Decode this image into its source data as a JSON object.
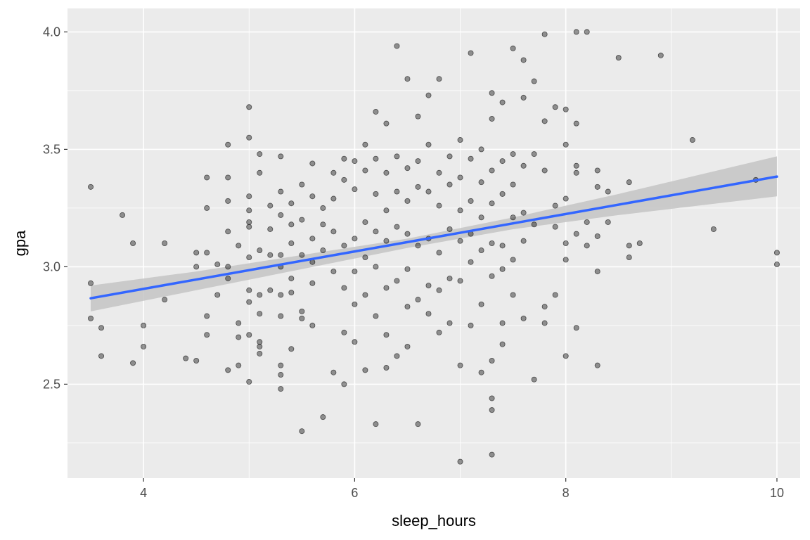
{
  "chart_data": {
    "type": "scatter",
    "title": "",
    "xlabel": "sleep_hours",
    "ylabel": "gpa",
    "xlim": [
      3.28,
      10.22
    ],
    "ylim": [
      2.1,
      4.1
    ],
    "x_ticks": [
      4,
      6,
      8,
      10
    ],
    "y_ticks": [
      2.5,
      3.0,
      3.5,
      4.0
    ],
    "x_tick_labels": [
      "4",
      "6",
      "8",
      "10"
    ],
    "y_tick_labels": [
      "2.5",
      "3.0",
      "3.5",
      "4.0"
    ],
    "grid": true,
    "legend": "none",
    "colors": {
      "panel": "#ebebeb",
      "grid": "#ffffff",
      "points": "#000000",
      "line": "#3366ff",
      "ribbon": "#c4c4c4"
    },
    "trend_line": {
      "method": "linear",
      "intercept": 2.587,
      "slope": 0.0797,
      "x_range": [
        3.5,
        10.0
      ]
    },
    "confidence_band": [
      {
        "x": 3.5,
        "lower": 2.81,
        "upper": 2.92
      },
      {
        "x": 4.5,
        "lower": 2.9,
        "upper": 2.98
      },
      {
        "x": 5.5,
        "lower": 2.99,
        "upper": 3.05
      },
      {
        "x": 6.5,
        "lower": 3.08,
        "upper": 3.12
      },
      {
        "x": 7.5,
        "lower": 3.16,
        "upper": 3.21
      },
      {
        "x": 8.5,
        "lower": 3.22,
        "upper": 3.31
      },
      {
        "x": 10.0,
        "lower": 3.3,
        "upper": 3.47
      }
    ],
    "points": [
      [
        3.5,
        3.34
      ],
      [
        3.5,
        2.93
      ],
      [
        3.5,
        2.78
      ],
      [
        3.6,
        2.74
      ],
      [
        3.6,
        2.62
      ],
      [
        3.8,
        3.22
      ],
      [
        3.9,
        3.1
      ],
      [
        3.9,
        2.59
      ],
      [
        4.0,
        2.75
      ],
      [
        4.0,
        2.66
      ],
      [
        4.2,
        3.1
      ],
      [
        4.2,
        2.86
      ],
      [
        4.4,
        2.61
      ],
      [
        4.5,
        2.6
      ],
      [
        4.5,
        3.06
      ],
      [
        4.5,
        3.0
      ],
      [
        4.6,
        3.38
      ],
      [
        4.6,
        3.25
      ],
      [
        4.6,
        3.06
      ],
      [
        4.6,
        2.79
      ],
      [
        4.6,
        2.71
      ],
      [
        4.7,
        3.01
      ],
      [
        4.7,
        2.88
      ],
      [
        4.8,
        3.52
      ],
      [
        4.8,
        3.38
      ],
      [
        4.8,
        3.28
      ],
      [
        4.8,
        3.15
      ],
      [
        4.8,
        3.0
      ],
      [
        4.8,
        2.95
      ],
      [
        4.8,
        2.56
      ],
      [
        4.9,
        3.09
      ],
      [
        4.9,
        2.76
      ],
      [
        4.9,
        2.7
      ],
      [
        4.9,
        2.58
      ],
      [
        5.0,
        3.68
      ],
      [
        5.0,
        3.55
      ],
      [
        5.0,
        3.3
      ],
      [
        5.0,
        3.24
      ],
      [
        5.0,
        3.19
      ],
      [
        5.0,
        3.17
      ],
      [
        5.0,
        3.04
      ],
      [
        5.0,
        2.9
      ],
      [
        5.0,
        2.85
      ],
      [
        5.0,
        2.71
      ],
      [
        5.0,
        2.51
      ],
      [
        5.1,
        3.48
      ],
      [
        5.1,
        3.4
      ],
      [
        5.1,
        3.07
      ],
      [
        5.1,
        2.88
      ],
      [
        5.1,
        2.8
      ],
      [
        5.1,
        2.68
      ],
      [
        5.1,
        2.66
      ],
      [
        5.1,
        2.63
      ],
      [
        5.2,
        3.26
      ],
      [
        5.2,
        3.16
      ],
      [
        5.2,
        3.05
      ],
      [
        5.2,
        2.9
      ],
      [
        5.3,
        3.47
      ],
      [
        5.3,
        3.32
      ],
      [
        5.3,
        3.22
      ],
      [
        5.3,
        3.05
      ],
      [
        5.3,
        3.0
      ],
      [
        5.3,
        2.88
      ],
      [
        5.3,
        2.79
      ],
      [
        5.3,
        2.58
      ],
      [
        5.3,
        2.54
      ],
      [
        5.3,
        2.48
      ],
      [
        5.4,
        3.27
      ],
      [
        5.4,
        3.18
      ],
      [
        5.4,
        3.1
      ],
      [
        5.4,
        2.95
      ],
      [
        5.4,
        2.89
      ],
      [
        5.4,
        2.65
      ],
      [
        5.5,
        3.35
      ],
      [
        5.5,
        3.2
      ],
      [
        5.5,
        3.05
      ],
      [
        5.5,
        2.81
      ],
      [
        5.5,
        2.78
      ],
      [
        5.5,
        2.3
      ],
      [
        5.6,
        3.44
      ],
      [
        5.6,
        3.3
      ],
      [
        5.6,
        3.12
      ],
      [
        5.6,
        3.02
      ],
      [
        5.6,
        2.93
      ],
      [
        5.6,
        2.75
      ],
      [
        5.7,
        3.25
      ],
      [
        5.7,
        3.18
      ],
      [
        5.7,
        3.07
      ],
      [
        5.7,
        2.36
      ],
      [
        5.8,
        3.4
      ],
      [
        5.8,
        3.29
      ],
      [
        5.8,
        3.15
      ],
      [
        5.8,
        2.98
      ],
      [
        5.8,
        2.55
      ],
      [
        5.9,
        3.46
      ],
      [
        5.9,
        3.37
      ],
      [
        5.9,
        3.09
      ],
      [
        5.9,
        2.91
      ],
      [
        5.9,
        2.72
      ],
      [
        5.9,
        2.5
      ],
      [
        6.0,
        3.45
      ],
      [
        6.0,
        3.33
      ],
      [
        6.0,
        3.12
      ],
      [
        6.0,
        2.98
      ],
      [
        6.0,
        2.84
      ],
      [
        6.0,
        2.68
      ],
      [
        6.1,
        3.52
      ],
      [
        6.1,
        3.41
      ],
      [
        6.1,
        3.19
      ],
      [
        6.1,
        3.04
      ],
      [
        6.1,
        2.88
      ],
      [
        6.1,
        2.56
      ],
      [
        6.2,
        3.66
      ],
      [
        6.2,
        3.46
      ],
      [
        6.2,
        3.31
      ],
      [
        6.2,
        3.15
      ],
      [
        6.2,
        3.0
      ],
      [
        6.2,
        2.79
      ],
      [
        6.2,
        2.33
      ],
      [
        6.3,
        3.61
      ],
      [
        6.3,
        3.4
      ],
      [
        6.3,
        3.24
      ],
      [
        6.3,
        3.11
      ],
      [
        6.3,
        2.91
      ],
      [
        6.3,
        2.71
      ],
      [
        6.3,
        2.57
      ],
      [
        6.4,
        3.94
      ],
      [
        6.4,
        3.47
      ],
      [
        6.4,
        3.32
      ],
      [
        6.4,
        3.17
      ],
      [
        6.4,
        2.94
      ],
      [
        6.4,
        2.62
      ],
      [
        6.5,
        3.8
      ],
      [
        6.5,
        3.42
      ],
      [
        6.5,
        3.28
      ],
      [
        6.5,
        3.14
      ],
      [
        6.5,
        2.99
      ],
      [
        6.5,
        2.83
      ],
      [
        6.5,
        2.66
      ],
      [
        6.6,
        3.64
      ],
      [
        6.6,
        3.45
      ],
      [
        6.6,
        3.34
      ],
      [
        6.6,
        3.09
      ],
      [
        6.6,
        2.86
      ],
      [
        6.6,
        2.33
      ],
      [
        6.7,
        3.73
      ],
      [
        6.7,
        3.52
      ],
      [
        6.7,
        3.32
      ],
      [
        6.7,
        3.12
      ],
      [
        6.7,
        2.92
      ],
      [
        6.7,
        2.8
      ],
      [
        6.8,
        3.8
      ],
      [
        6.8,
        3.4
      ],
      [
        6.8,
        3.26
      ],
      [
        6.8,
        3.06
      ],
      [
        6.8,
        2.9
      ],
      [
        6.8,
        2.72
      ],
      [
        6.9,
        3.47
      ],
      [
        6.9,
        3.35
      ],
      [
        6.9,
        3.16
      ],
      [
        6.9,
        2.95
      ],
      [
        6.9,
        2.76
      ],
      [
        7.0,
        3.54
      ],
      [
        7.0,
        3.38
      ],
      [
        7.0,
        3.24
      ],
      [
        7.0,
        3.11
      ],
      [
        7.0,
        2.94
      ],
      [
        7.0,
        2.58
      ],
      [
        7.0,
        2.17
      ],
      [
        7.1,
        3.91
      ],
      [
        7.1,
        3.46
      ],
      [
        7.1,
        3.28
      ],
      [
        7.1,
        3.14
      ],
      [
        7.1,
        3.02
      ],
      [
        7.1,
        2.75
      ],
      [
        7.2,
        3.5
      ],
      [
        7.2,
        3.36
      ],
      [
        7.2,
        3.21
      ],
      [
        7.2,
        3.07
      ],
      [
        7.2,
        2.84
      ],
      [
        7.2,
        2.55
      ],
      [
        7.3,
        3.74
      ],
      [
        7.3,
        3.63
      ],
      [
        7.3,
        3.41
      ],
      [
        7.3,
        3.27
      ],
      [
        7.3,
        3.1
      ],
      [
        7.3,
        2.96
      ],
      [
        7.3,
        2.6
      ],
      [
        7.3,
        2.44
      ],
      [
        7.3,
        2.39
      ],
      [
        7.3,
        2.2
      ],
      [
        7.4,
        3.7
      ],
      [
        7.4,
        3.45
      ],
      [
        7.4,
        3.31
      ],
      [
        7.4,
        3.09
      ],
      [
        7.4,
        2.99
      ],
      [
        7.4,
        2.76
      ],
      [
        7.4,
        2.67
      ],
      [
        7.5,
        3.93
      ],
      [
        7.5,
        3.48
      ],
      [
        7.5,
        3.35
      ],
      [
        7.5,
        3.21
      ],
      [
        7.5,
        3.03
      ],
      [
        7.5,
        2.88
      ],
      [
        7.6,
        3.88
      ],
      [
        7.6,
        3.72
      ],
      [
        7.6,
        3.43
      ],
      [
        7.6,
        3.23
      ],
      [
        7.6,
        3.11
      ],
      [
        7.6,
        2.78
      ],
      [
        7.7,
        3.79
      ],
      [
        7.7,
        3.48
      ],
      [
        7.7,
        3.18
      ],
      [
        7.7,
        2.52
      ],
      [
        7.8,
        3.99
      ],
      [
        7.8,
        3.62
      ],
      [
        7.8,
        3.41
      ],
      [
        7.8,
        2.83
      ],
      [
        7.8,
        2.76
      ],
      [
        7.9,
        3.68
      ],
      [
        7.9,
        3.26
      ],
      [
        7.9,
        3.17
      ],
      [
        7.9,
        2.88
      ],
      [
        8.0,
        3.67
      ],
      [
        8.0,
        3.52
      ],
      [
        8.0,
        3.29
      ],
      [
        8.0,
        3.1
      ],
      [
        8.0,
        3.03
      ],
      [
        8.0,
        2.62
      ],
      [
        8.1,
        4.0
      ],
      [
        8.1,
        3.61
      ],
      [
        8.1,
        3.43
      ],
      [
        8.1,
        3.4
      ],
      [
        8.1,
        3.14
      ],
      [
        8.1,
        2.74
      ],
      [
        8.2,
        4.0
      ],
      [
        8.2,
        3.19
      ],
      [
        8.2,
        3.09
      ],
      [
        8.3,
        3.41
      ],
      [
        8.3,
        3.34
      ],
      [
        8.3,
        3.13
      ],
      [
        8.3,
        2.98
      ],
      [
        8.3,
        2.58
      ],
      [
        8.4,
        3.32
      ],
      [
        8.4,
        3.19
      ],
      [
        8.5,
        3.89
      ],
      [
        8.6,
        3.36
      ],
      [
        8.6,
        3.09
      ],
      [
        8.6,
        3.04
      ],
      [
        8.7,
        3.1
      ],
      [
        8.9,
        3.9
      ],
      [
        9.2,
        3.54
      ],
      [
        9.4,
        3.16
      ],
      [
        9.8,
        3.37
      ],
      [
        10.0,
        3.06
      ],
      [
        10.0,
        3.01
      ]
    ]
  }
}
